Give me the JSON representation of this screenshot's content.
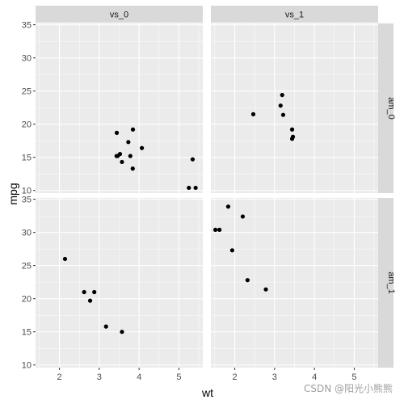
{
  "chart_data": {
    "type": "scatter",
    "xlabel": "wt",
    "ylabel": "mpg",
    "xlim": [
      1.4,
      5.6
    ],
    "ylim": [
      9.6,
      35.2
    ],
    "x_ticks": [
      2,
      3,
      4,
      5
    ],
    "y_ticks": [
      10,
      15,
      20,
      25,
      30,
      35
    ],
    "grid": true,
    "column_strips": [
      "vs_0",
      "vs_1"
    ],
    "row_strips": [
      "am_0",
      "am_1"
    ],
    "panels": [
      {
        "col": "vs_0",
        "row": "am_0",
        "points": [
          {
            "x": 3.44,
            "y": 18.7
          },
          {
            "x": 3.46,
            "y": 15.2
          },
          {
            "x": 3.57,
            "y": 14.3
          },
          {
            "x": 4.07,
            "y": 16.4
          },
          {
            "x": 3.73,
            "y": 17.3
          },
          {
            "x": 3.78,
            "y": 15.2
          },
          {
            "x": 5.25,
            "y": 10.4
          },
          {
            "x": 5.42,
            "y": 10.4
          },
          {
            "x": 5.345,
            "y": 14.7
          },
          {
            "x": 3.52,
            "y": 15.5
          },
          {
            "x": 3.435,
            "y": 15.2
          },
          {
            "x": 3.84,
            "y": 13.3
          },
          {
            "x": 3.845,
            "y": 19.2
          }
        ]
      },
      {
        "col": "vs_1",
        "row": "am_0",
        "points": [
          {
            "x": 3.215,
            "y": 21.4
          },
          {
            "x": 3.46,
            "y": 18.1
          },
          {
            "x": 3.19,
            "y": 24.4
          },
          {
            "x": 3.15,
            "y": 22.8
          },
          {
            "x": 3.44,
            "y": 19.2
          },
          {
            "x": 3.44,
            "y": 17.8
          },
          {
            "x": 2.465,
            "y": 21.5
          }
        ]
      },
      {
        "col": "vs_0",
        "row": "am_1",
        "points": [
          {
            "x": 2.62,
            "y": 21.0
          },
          {
            "x": 2.875,
            "y": 21.0
          },
          {
            "x": 2.14,
            "y": 26.0
          },
          {
            "x": 3.17,
            "y": 15.8
          },
          {
            "x": 2.77,
            "y": 19.7
          },
          {
            "x": 3.57,
            "y": 15.0
          }
        ]
      },
      {
        "col": "vs_1",
        "row": "am_1",
        "points": [
          {
            "x": 2.32,
            "y": 22.8
          },
          {
            "x": 2.2,
            "y": 32.4
          },
          {
            "x": 1.615,
            "y": 30.4
          },
          {
            "x": 1.835,
            "y": 33.9
          },
          {
            "x": 1.935,
            "y": 27.3
          },
          {
            "x": 1.513,
            "y": 30.4
          },
          {
            "x": 2.78,
            "y": 21.4
          }
        ]
      }
    ]
  },
  "watermark": "CSDN @阳光小熊熊",
  "colors": {
    "panel_bg": "#ebebeb",
    "strip_bg": "#d9d9d9",
    "grid_major": "#ffffff",
    "point": "#000000"
  }
}
